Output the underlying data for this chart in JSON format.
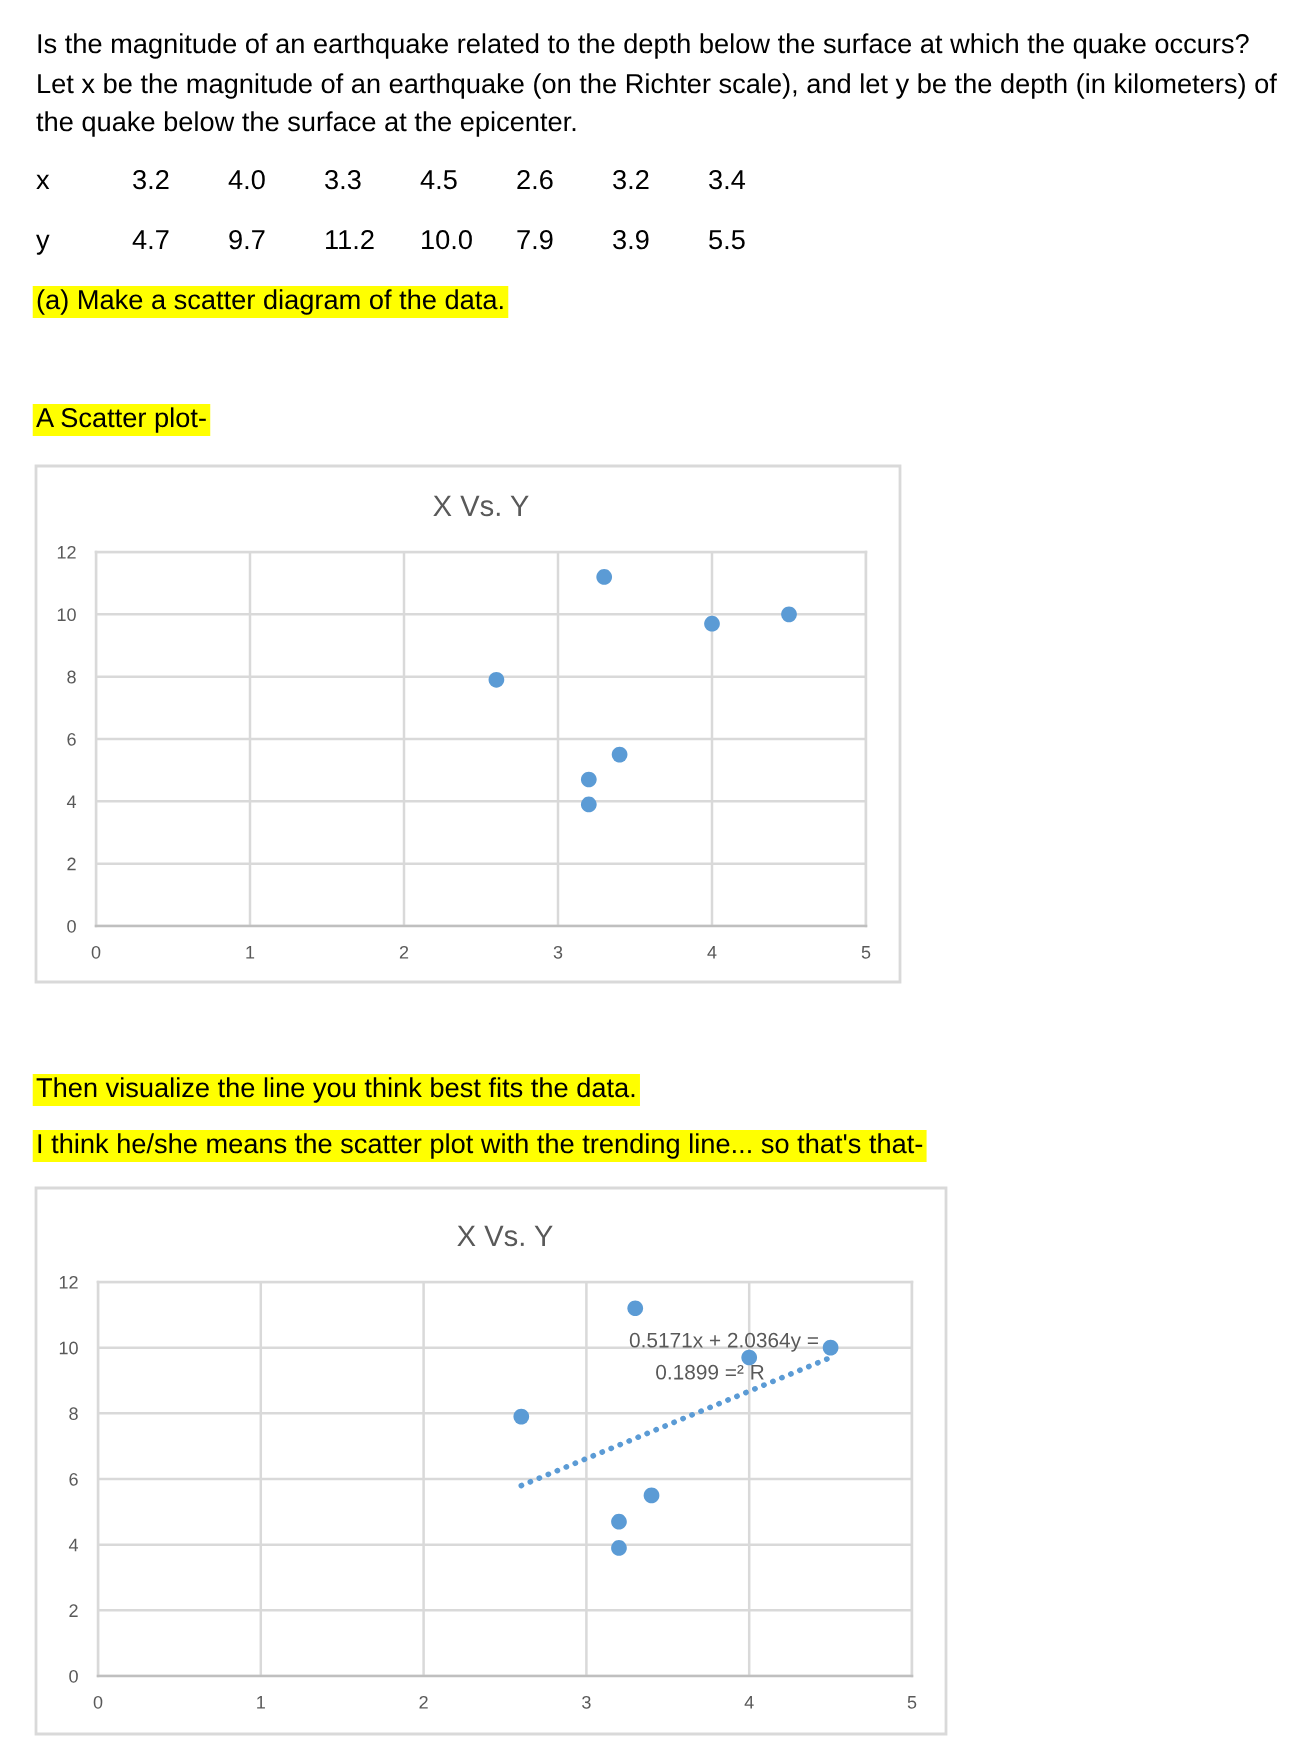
{
  "chart_data": [
    {
      "type": "scatter",
      "title": "X Vs. Y",
      "x": [
        3.2,
        4.0,
        3.3,
        4.5,
        2.6,
        3.2,
        3.4
      ],
      "values": [
        4.7,
        9.7,
        11.2,
        10.0,
        7.9,
        3.9,
        5.5
      ],
      "color": "#5b9bd5",
      "marker": "circle",
      "xlim": [
        0,
        5
      ],
      "xticks": [
        0,
        1,
        2,
        3,
        4,
        5
      ],
      "ylim": [
        0,
        12
      ],
      "yticks": [
        0,
        2,
        4,
        6,
        8,
        10,
        12
      ],
      "grid": true,
      "annotations": [
        "Is the magnitude of an earthquake related to the depth below the surface at which the quake occurs?",
        "Let x be the magnitude of an earthquake (on the Richter scale), and let y be the depth (in kilometers) of",
        "the quake below the surface at the epicenter.",
        "x",
        "3.2",
        "4.0",
        "3.3",
        "4.5",
        "2.6",
        "3.2",
        "3.4",
        "y",
        "4.7",
        "9.7",
        "11.2",
        "10.0",
        "7.9",
        "3.9",
        "5.5",
        "(a) Make a scatter diagram of the data.",
        "A Scatter plot-"
      ]
    },
    {
      "type": "scatter",
      "title": "X Vs. Y",
      "x": [
        3.2,
        4.0,
        3.3,
        4.5,
        2.6,
        3.2,
        3.4
      ],
      "marker": "circle",
      "series": [
        {
          "color": "#5b9bd5",
          "values": [
            4.7,
            9.7,
            11.2,
            10.0,
            7.9,
            3.9,
            5.5
          ]
        },
        {
          "type": "line",
          "x": [
            2.6,
            4.5
          ],
          "values": [
            5.8,
            9.7
          ],
          "color": "#5b9bd5",
          "line_style": "dotted",
          "marker": "none"
        }
      ],
      "xlim": [
        0,
        5
      ],
      "xticks": [
        0,
        1,
        2,
        3,
        4,
        5
      ],
      "ylim": [
        0,
        12
      ],
      "yticks": [
        0,
        2,
        4,
        6,
        8,
        10,
        12
      ],
      "grid": true,
      "annotations": [
        "Then visualize the line you think best fits the data.",
        "I think he/she means the scatter plot with the trending line... so that's that-",
        "0.5171x + 2.0364y =",
        "0.1899 =² R"
      ]
    }
  ]
}
